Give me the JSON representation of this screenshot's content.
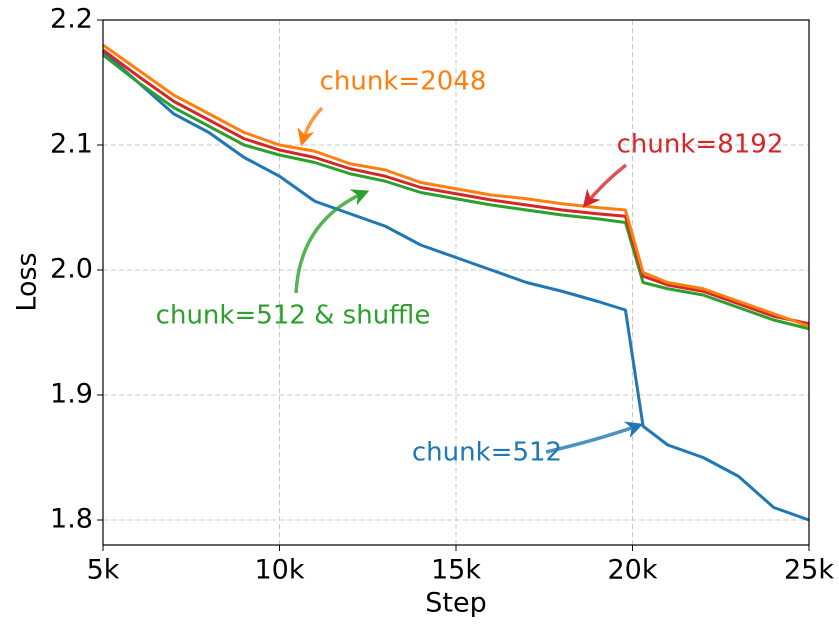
{
  "chart_data": {
    "type": "line",
    "xlabel": "Step",
    "ylabel": "Loss",
    "x": [
      5000,
      6000,
      7000,
      8000,
      9000,
      10000,
      11000,
      12000,
      13000,
      14000,
      15000,
      16000,
      17000,
      18000,
      19000,
      19800,
      20300,
      21000,
      22000,
      23000,
      24000,
      25000
    ],
    "series": [
      {
        "name": "chunk=512",
        "color": "#1f77b4",
        "values": [
          2.175,
          2.15,
          2.125,
          2.11,
          2.09,
          2.075,
          2.055,
          2.045,
          2.035,
          2.02,
          2.01,
          2.0,
          1.99,
          1.983,
          1.975,
          1.968,
          1.875,
          1.86,
          1.85,
          1.835,
          1.81,
          1.8
        ]
      },
      {
        "name": "chunk=512 & shuffle",
        "color": "#2ca02c",
        "values": [
          2.172,
          2.15,
          2.13,
          2.115,
          2.1,
          2.092,
          2.086,
          2.077,
          2.071,
          2.062,
          2.057,
          2.052,
          2.048,
          2.044,
          2.041,
          2.038,
          1.99,
          1.985,
          1.98,
          1.97,
          1.96,
          1.953
        ]
      },
      {
        "name": "chunk=8192",
        "color": "#d62728",
        "values": [
          2.176,
          2.155,
          2.135,
          2.12,
          2.105,
          2.096,
          2.09,
          2.081,
          2.075,
          2.066,
          2.061,
          2.056,
          2.052,
          2.048,
          2.045,
          2.043,
          1.995,
          1.988,
          1.983,
          1.973,
          1.963,
          1.957
        ]
      },
      {
        "name": "chunk=2048",
        "color": "#ff7f0e",
        "values": [
          2.18,
          2.16,
          2.14,
          2.125,
          2.11,
          2.1,
          2.095,
          2.085,
          2.08,
          2.07,
          2.065,
          2.06,
          2.057,
          2.053,
          2.05,
          2.048,
          1.998,
          1.99,
          1.985,
          1.975,
          1.965,
          1.955
        ]
      }
    ],
    "annotations": [
      {
        "text": "chunk=2048",
        "color": "#ff7f0e"
      },
      {
        "text": "chunk=8192",
        "color": "#d62728"
      },
      {
        "text": "chunk=512 & shuffle",
        "color": "#2ca02c"
      },
      {
        "text": "chunk=512",
        "color": "#1f77b4"
      }
    ],
    "xlim": [
      5000,
      25000
    ],
    "xticks": [
      {
        "value": 5000,
        "label": "5k"
      },
      {
        "value": 10000,
        "label": "10k"
      },
      {
        "value": 15000,
        "label": "15k"
      },
      {
        "value": 20000,
        "label": "20k"
      },
      {
        "value": 25000,
        "label": "25k"
      }
    ],
    "ylim": [
      1.78,
      2.2
    ],
    "yticks": [
      1.8,
      1.9,
      {
        "value": 2,
        "label": "2.0"
      },
      2.1,
      2.2
    ],
    "grid": true
  }
}
